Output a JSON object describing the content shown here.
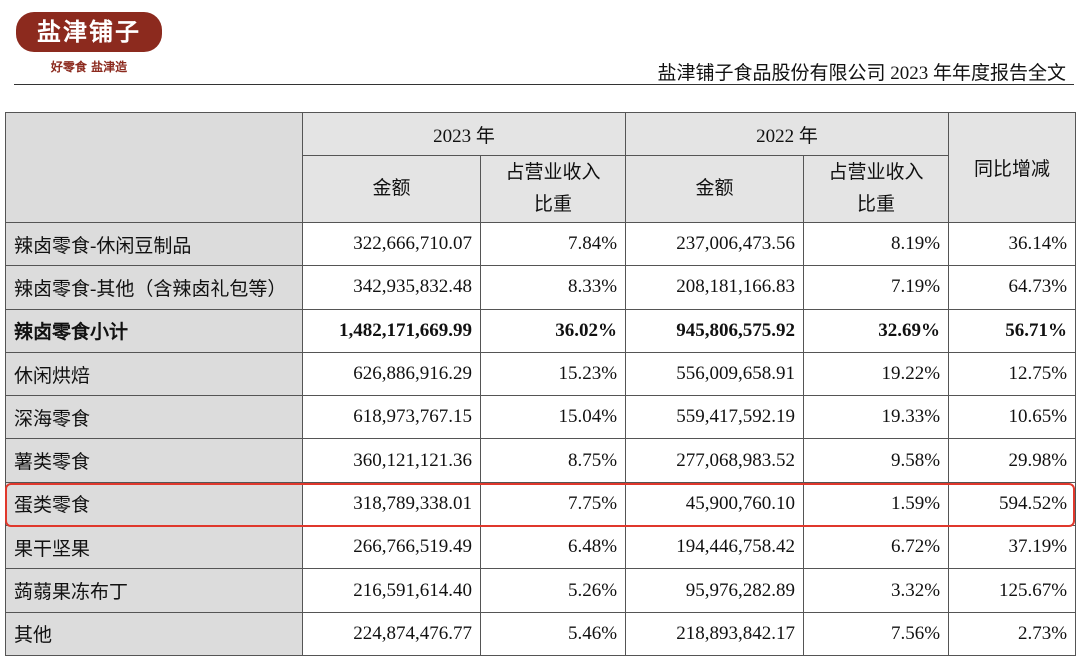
{
  "header": {
    "logo": "盐津铺子",
    "slogan": "好零食 盐津造",
    "title": "盐津铺子食品股份有限公司 2023 年年度报告全文"
  },
  "table": {
    "year_headers": [
      "2023 年",
      "2022 年"
    ],
    "sub_headers": [
      "金额",
      "占营业收入比重",
      "金额",
      "占营业收入比重"
    ],
    "change_header": "同比增减",
    "rows": [
      [
        "辣卤零食-休闲豆制品",
        "322,666,710.07",
        "7.84%",
        "237,006,473.56",
        "8.19%",
        "36.14%"
      ],
      [
        "辣卤零食-其他（含辣卤礼包等）",
        "342,935,832.48",
        "8.33%",
        "208,181,166.83",
        "7.19%",
        "64.73%"
      ],
      [
        "辣卤零食小计",
        "1,482,171,669.99",
        "36.02%",
        "945,806,575.92",
        "32.69%",
        "56.71%"
      ],
      [
        "休闲烘焙",
        "626,886,916.29",
        "15.23%",
        "556,009,658.91",
        "19.22%",
        "12.75%"
      ],
      [
        "深海零食",
        "618,973,767.15",
        "15.04%",
        "559,417,592.19",
        "19.33%",
        "10.65%"
      ],
      [
        "薯类零食",
        "360,121,121.36",
        "8.75%",
        "277,068,983.52",
        "9.58%",
        "29.98%"
      ],
      [
        "蛋类零食",
        "318,789,338.01",
        "7.75%",
        "45,900,760.10",
        "1.59%",
        "594.52%"
      ],
      [
        "果干坚果",
        "266,766,519.49",
        "6.48%",
        "194,446,758.42",
        "6.72%",
        "37.19%"
      ],
      [
        "蒟蒻果冻布丁",
        "216,591,614.40",
        "5.26%",
        "95,976,282.89",
        "3.32%",
        "125.67%"
      ],
      [
        "其他",
        "224,874,476.77",
        "5.46%",
        "218,893,842.17",
        "7.56%",
        "2.73%"
      ]
    ]
  }
}
